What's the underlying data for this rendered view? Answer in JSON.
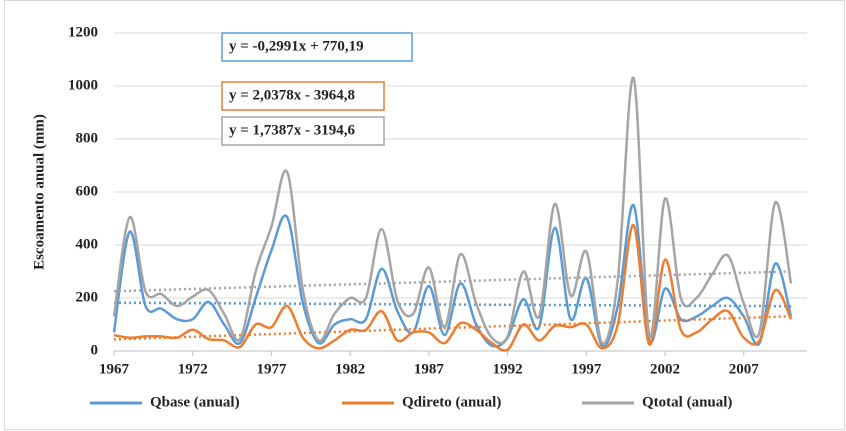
{
  "chart_data": {
    "type": "line",
    "y_label": "Escoamento anual (mm)",
    "x": [
      1967,
      1968,
      1969,
      1970,
      1971,
      1972,
      1973,
      1974,
      1975,
      1976,
      1977,
      1978,
      1979,
      1980,
      1981,
      1982,
      1983,
      1984,
      1985,
      1986,
      1987,
      1988,
      1989,
      1990,
      1991,
      1992,
      1993,
      1994,
      1995,
      1996,
      1997,
      1998,
      1999,
      2000,
      2001,
      2002,
      2003,
      2004,
      2005,
      2006,
      2007,
      2008,
      2009,
      2010
    ],
    "xlim": [
      1967,
      2010
    ],
    "xticks": [
      1967,
      1972,
      1977,
      1982,
      1987,
      1992,
      1997,
      2002,
      2007
    ],
    "ylim": [
      0,
      1200
    ],
    "yticks": [
      0,
      200,
      400,
      600,
      800,
      1000,
      1200
    ],
    "grid": true,
    "legend": "bottom",
    "series": [
      {
        "name": "Qbase (anual)",
        "color": "#5b9bd5",
        "values": [
          70,
          450,
          170,
          160,
          120,
          120,
          185,
          100,
          30,
          200,
          380,
          505,
          180,
          30,
          100,
          120,
          120,
          310,
          150,
          70,
          245,
          60,
          255,
          100,
          20,
          50,
          195,
          90,
          465,
          120,
          275,
          20,
          170,
          550,
          40,
          235,
          120,
          130,
          170,
          200,
          130,
          30,
          330,
          130
        ],
        "trendline": {
          "label": "y = -0,2991x + 770,19",
          "slope": -0.2991,
          "intercept": 770.19
        }
      },
      {
        "name": "Qdireto (anual)",
        "color": "#ed7d31",
        "values": [
          60,
          50,
          55,
          55,
          50,
          80,
          45,
          40,
          15,
          100,
          90,
          170,
          50,
          10,
          40,
          80,
          80,
          150,
          40,
          70,
          70,
          30,
          105,
          80,
          30,
          5,
          100,
          40,
          95,
          90,
          100,
          10,
          100,
          475,
          25,
          345,
          80,
          70,
          120,
          150,
          50,
          40,
          230,
          120
        ],
        "trendline": {
          "label": "y = 2,0378x - 3964,8",
          "slope": 2.0378,
          "intercept": -3964.8
        }
      },
      {
        "name": "Qtotal (anual)",
        "color": "#a5a5a5",
        "values": [
          130,
          505,
          225,
          215,
          170,
          205,
          230,
          140,
          45,
          300,
          470,
          675,
          230,
          40,
          140,
          200,
          200,
          460,
          190,
          140,
          315,
          90,
          365,
          180,
          50,
          55,
          300,
          130,
          555,
          210,
          375,
          30,
          270,
          1030,
          60,
          575,
          200,
          200,
          290,
          360,
          180,
          70,
          560,
          255
        ],
        "trendline": {
          "label": "y = 1,7387x - 3194,6",
          "slope": 1.7387,
          "intercept": -3194.6
        }
      }
    ]
  }
}
